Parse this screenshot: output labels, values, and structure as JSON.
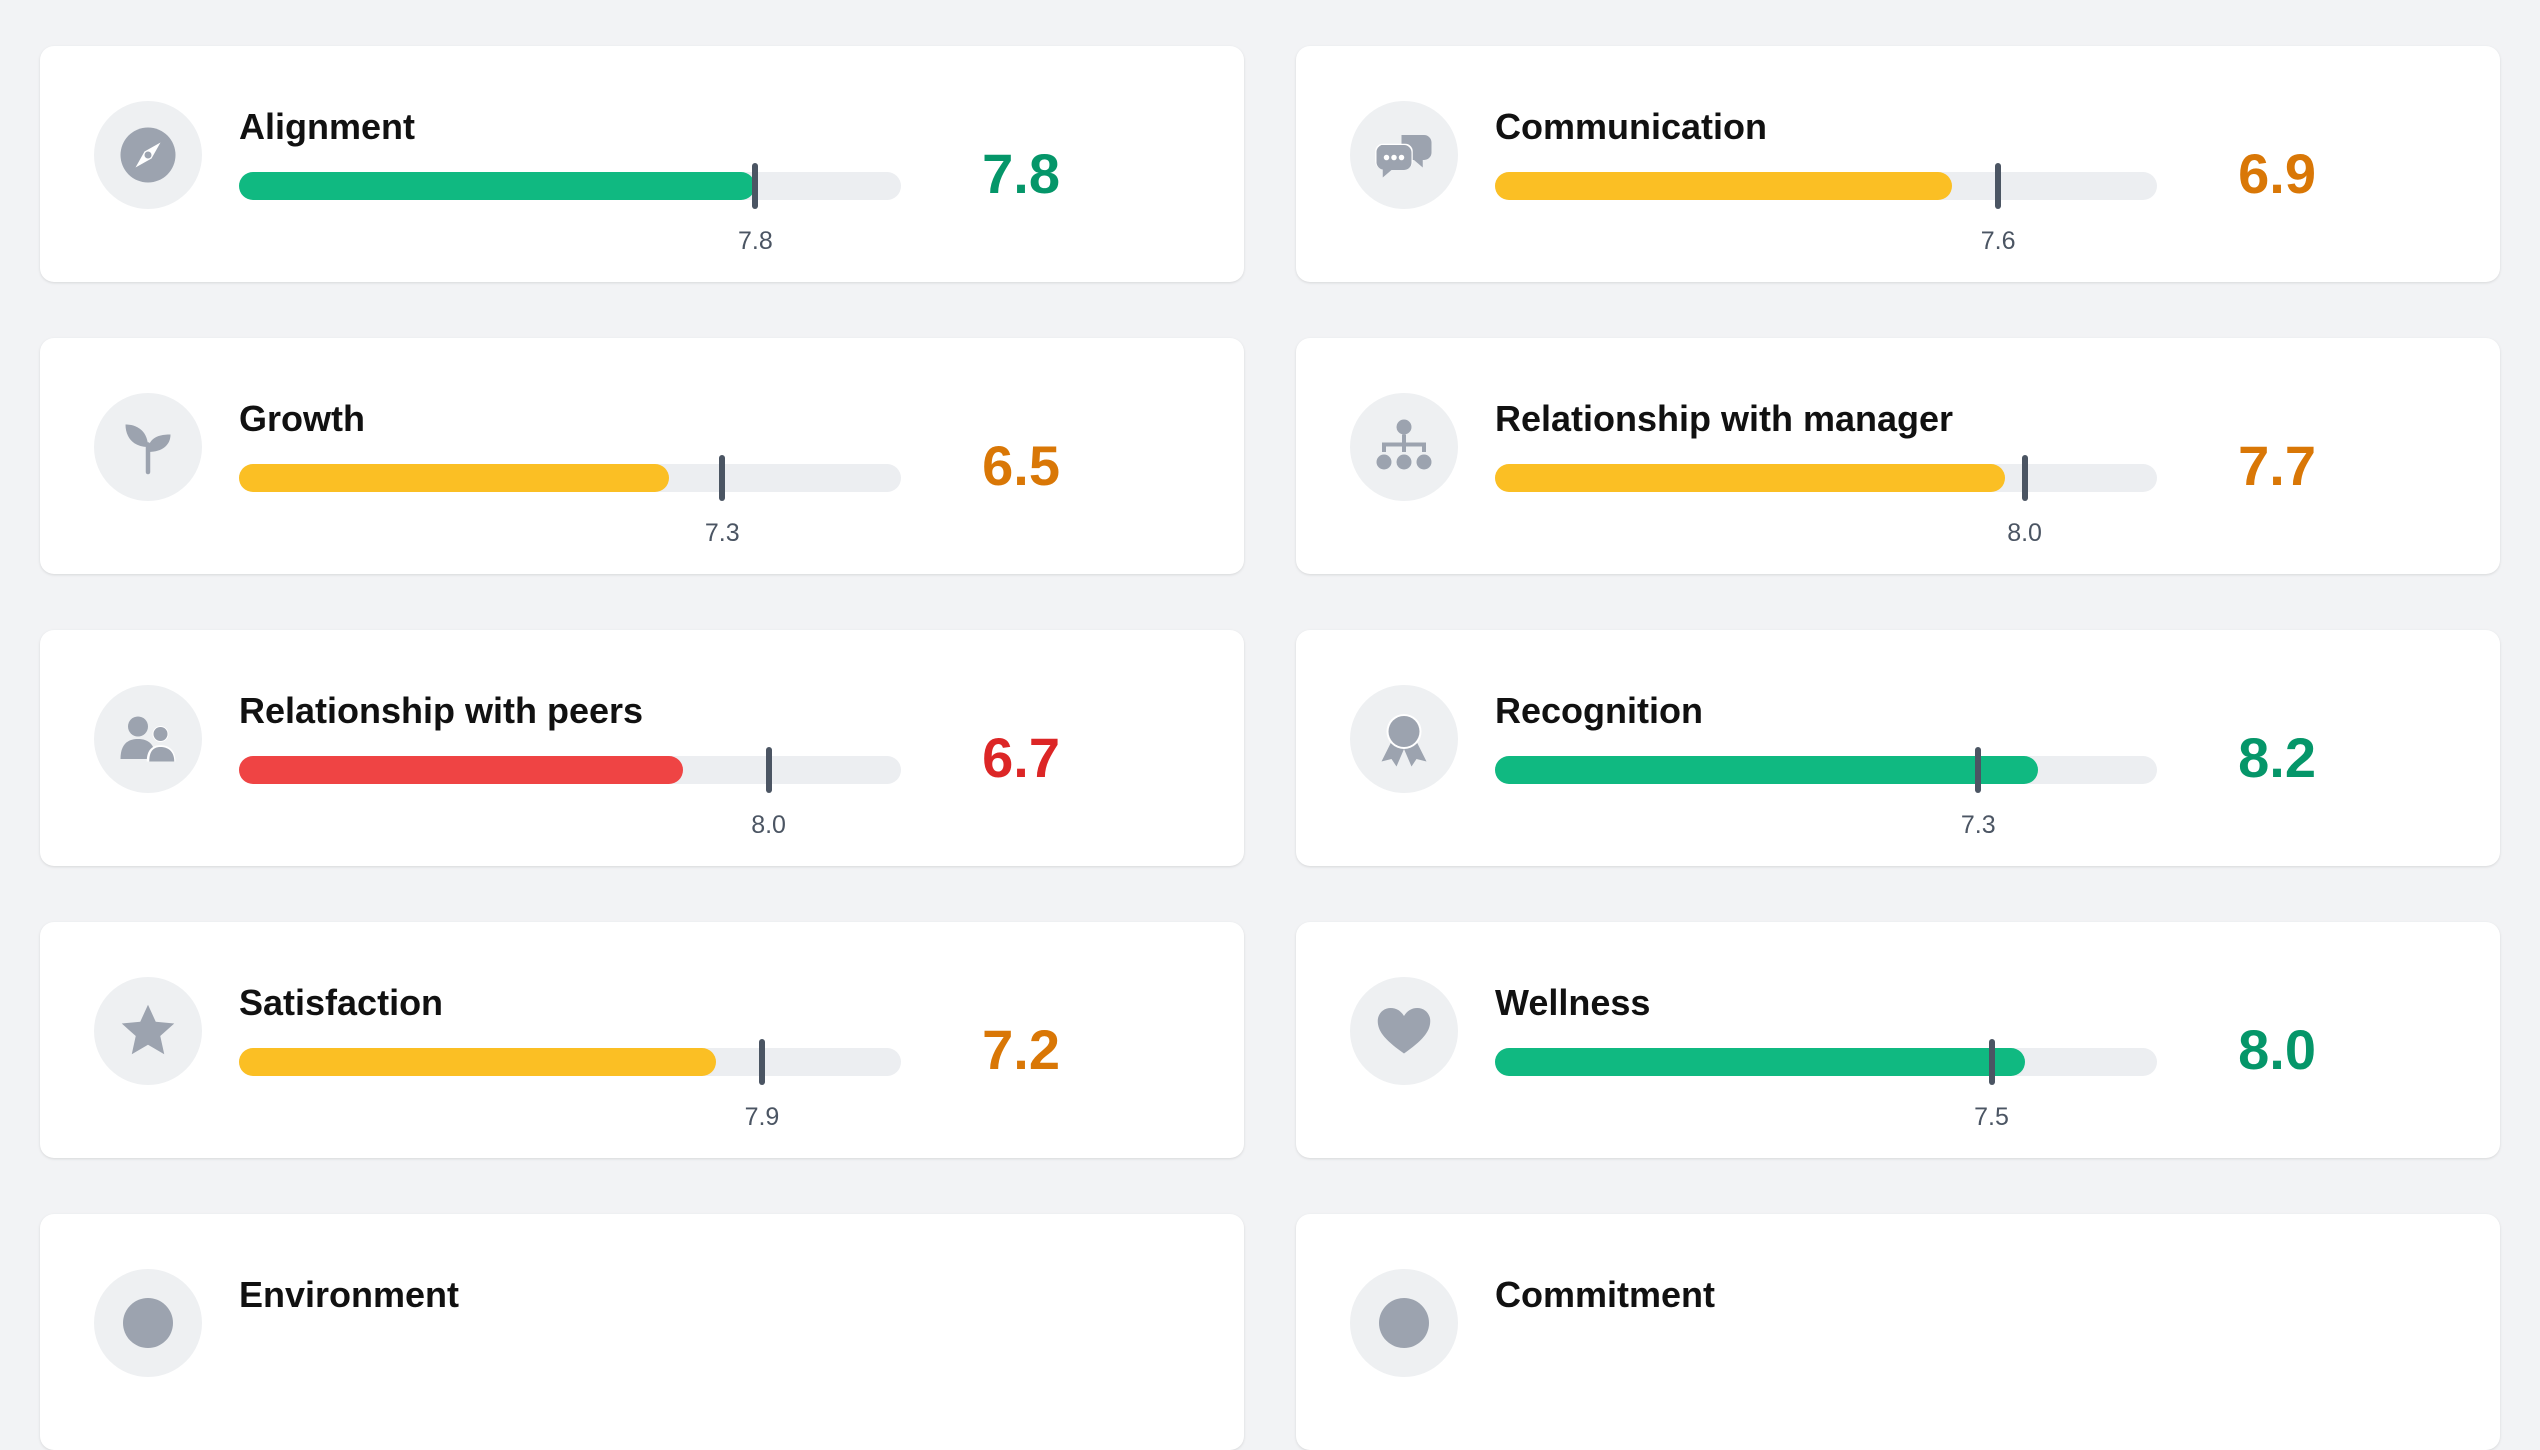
{
  "scale": {
    "min": 0,
    "max": 10
  },
  "colors": {
    "good": "#10b981",
    "ok": "#fbbf24",
    "bad": "#ef4444",
    "good_text": "#059669",
    "ok_text": "#d97706",
    "bad_text": "#dc2626"
  },
  "metrics": [
    {
      "label": "Alignment",
      "score": "7.8",
      "value": 7.8,
      "benchmark": "7.8",
      "benchmark_value": 7.8,
      "status": "good",
      "icon": "compass-icon"
    },
    {
      "label": "Communication",
      "score": "6.9",
      "value": 6.9,
      "benchmark": "7.6",
      "benchmark_value": 7.6,
      "status": "ok",
      "icon": "chat-bubbles-icon"
    },
    {
      "label": "Growth",
      "score": "6.5",
      "value": 6.5,
      "benchmark": "7.3",
      "benchmark_value": 7.3,
      "status": "ok",
      "icon": "sprout-icon"
    },
    {
      "label": "Relationship with manager",
      "score": "7.7",
      "value": 7.7,
      "benchmark": "8.0",
      "benchmark_value": 8.0,
      "status": "ok",
      "icon": "org-chart-icon"
    },
    {
      "label": "Relationship with peers",
      "score": "6.7",
      "value": 6.7,
      "benchmark": "8.0",
      "benchmark_value": 8.0,
      "status": "bad",
      "icon": "peers-icon"
    },
    {
      "label": "Recognition",
      "score": "8.2",
      "value": 8.2,
      "benchmark": "7.3",
      "benchmark_value": 7.3,
      "status": "good",
      "icon": "award-icon"
    },
    {
      "label": "Satisfaction",
      "score": "7.2",
      "value": 7.2,
      "benchmark": "7.9",
      "benchmark_value": 7.9,
      "status": "ok",
      "icon": "star-icon"
    },
    {
      "label": "Wellness",
      "score": "8.0",
      "value": 8.0,
      "benchmark": "7.5",
      "benchmark_value": 7.5,
      "status": "good",
      "icon": "heart-icon"
    },
    {
      "label": "Environment",
      "score": "",
      "value": null,
      "benchmark": "",
      "benchmark_value": null,
      "status": "",
      "icon": "environment-icon"
    },
    {
      "label": "Commitment",
      "score": "",
      "value": null,
      "benchmark": "",
      "benchmark_value": null,
      "status": "",
      "icon": "commitment-icon"
    }
  ]
}
